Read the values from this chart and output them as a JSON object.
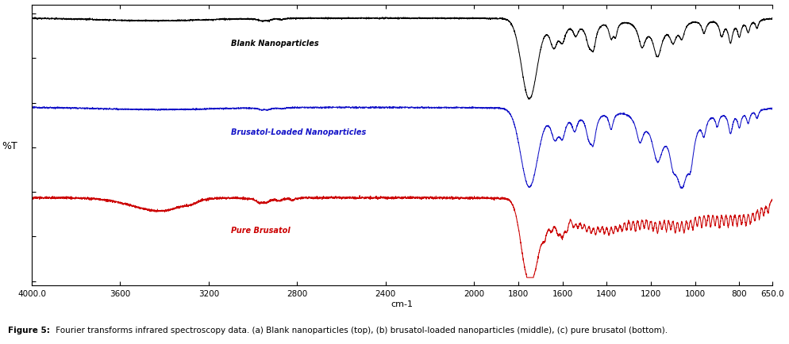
{
  "xmin": 4000,
  "xmax": 650,
  "xticks": [
    4000,
    3600,
    3200,
    2800,
    2400,
    2000,
    1800,
    1600,
    1400,
    1200,
    1000,
    800,
    650
  ],
  "xlabel": "cm-1",
  "ylabel": "%T",
  "background_color": "#ffffff",
  "label_black": "Blank Nanoparticles",
  "label_blue": "Brusatol-Loaded Nanoparticles",
  "label_red": "Pure Brusatol",
  "caption_bold": "Figure 5:",
  "caption_normal": " Fourier transforms infrared spectroscopy data. (a) Blank nanoparticles (top), (b) brusatol-loaded nanoparticles (middle), (c) pure brusatol (bottom).",
  "color_black": "#000000",
  "color_blue": "#1414c8",
  "color_red": "#cc0000",
  "color_label_black": "#000000",
  "color_label_blue": "#1414c8",
  "color_label_red": "#cc0000"
}
